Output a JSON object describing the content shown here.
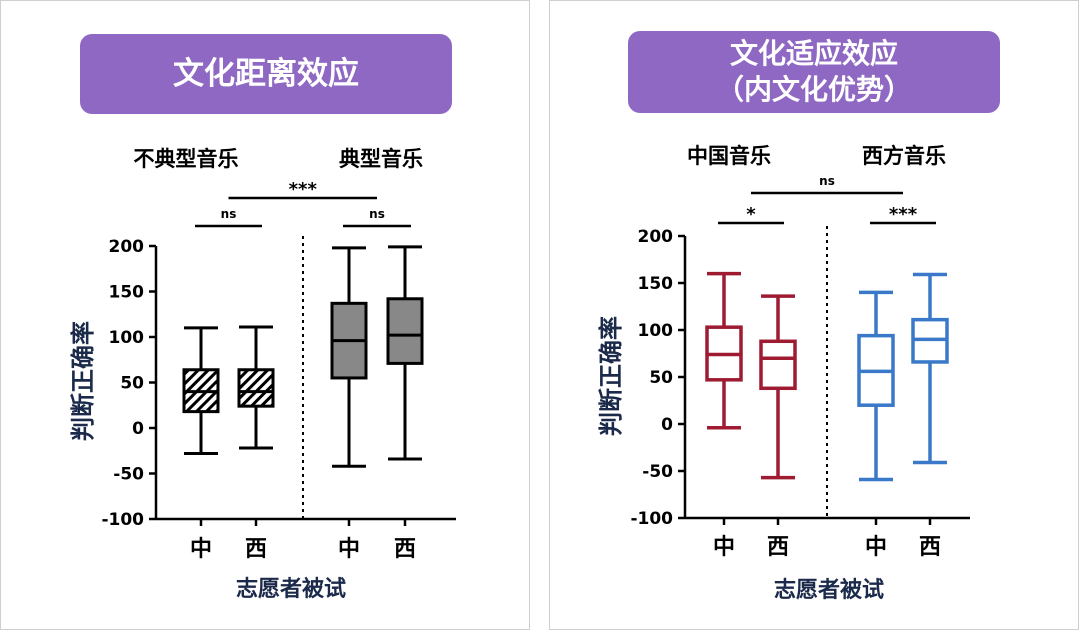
{
  "panels": [
    {
      "title": "文化距离效应",
      "chart_data": {
        "type": "box",
        "ylabel": "判断正确率",
        "xlabel": "志愿者被试",
        "ylim": [
          -100,
          200
        ],
        "yticks": [
          -100,
          -50,
          0,
          50,
          100,
          150,
          200
        ],
        "groups": [
          "不典型音乐",
          "典型音乐"
        ],
        "categories": [
          "中",
          "西",
          "中",
          "西"
        ],
        "boxes": [
          {
            "group": "不典型音乐",
            "label": "中",
            "min": -28,
            "q1": 18,
            "median": 40,
            "q3": 64,
            "max": 110,
            "fill": "hatched"
          },
          {
            "group": "不典型音乐",
            "label": "西",
            "min": -22,
            "q1": 24,
            "median": 40,
            "q3": 64,
            "max": 111,
            "fill": "hatched"
          },
          {
            "group": "典型音乐",
            "label": "中",
            "min": -42,
            "q1": 55,
            "median": 96,
            "q3": 137,
            "max": 198,
            "fill": "gray"
          },
          {
            "group": "典型音乐",
            "label": "西",
            "min": -34,
            "q1": 71,
            "median": 102,
            "q3": 142,
            "max": 199,
            "fill": "gray"
          }
        ],
        "significance": [
          {
            "from": 0,
            "to": 1,
            "label": "ns"
          },
          {
            "from": 2,
            "to": 3,
            "label": "ns"
          },
          {
            "from": 0.5,
            "to": 2.5,
            "label": "***"
          }
        ]
      }
    },
    {
      "title_lines": [
        "文化适应效应",
        "（内文化优势）"
      ],
      "chart_data": {
        "type": "box",
        "ylabel": "判断正确率",
        "xlabel": "志愿者被试",
        "ylim": [
          -100,
          200
        ],
        "yticks": [
          -100,
          -50,
          0,
          50,
          100,
          150,
          200
        ],
        "groups": [
          "中国音乐",
          "西方音乐"
        ],
        "categories": [
          "中",
          "西",
          "中",
          "西"
        ],
        "colors": {
          "chinese_music": "#9e1b32",
          "western_music": "#3a78c9"
        },
        "boxes": [
          {
            "group": "中国音乐",
            "label": "中",
            "min": -4,
            "q1": 47,
            "median": 74,
            "q3": 103,
            "max": 160,
            "color": "#9e1b32"
          },
          {
            "group": "中国音乐",
            "label": "西",
            "min": -57,
            "q1": 38,
            "median": 70,
            "q3": 88,
            "max": 136,
            "color": "#9e1b32"
          },
          {
            "group": "西方音乐",
            "label": "中",
            "min": -59,
            "q1": 20,
            "median": 56,
            "q3": 94,
            "max": 140,
            "color": "#3a78c9"
          },
          {
            "group": "西方音乐",
            "label": "西",
            "min": -41,
            "q1": 66,
            "median": 90,
            "q3": 111,
            "max": 159,
            "color": "#3a78c9"
          }
        ],
        "significance": [
          {
            "from": 0,
            "to": 1,
            "label": "*"
          },
          {
            "from": 2,
            "to": 3,
            "label": "***"
          },
          {
            "from": 0.5,
            "to": 2.5,
            "label": "ns"
          }
        ]
      }
    }
  ]
}
